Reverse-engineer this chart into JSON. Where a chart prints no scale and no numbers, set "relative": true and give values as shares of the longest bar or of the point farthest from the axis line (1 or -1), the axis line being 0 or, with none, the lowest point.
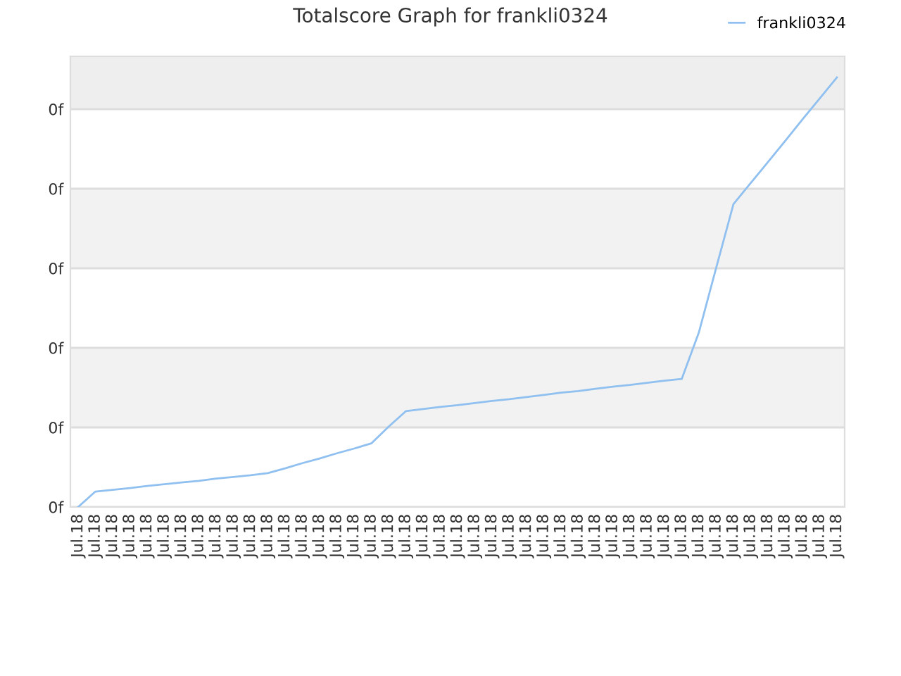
{
  "chart_data": {
    "type": "line",
    "title": "Totalscore Graph for frankli0324",
    "relative": true,
    "categories": [
      "Jul.18",
      "Jul.18",
      "Jul.18",
      "Jul.18",
      "Jul.18",
      "Jul.18",
      "Jul.18",
      "Jul.18",
      "Jul.18",
      "Jul.18",
      "Jul.18",
      "Jul.18",
      "Jul.18",
      "Jul.18",
      "Jul.18",
      "Jul.18",
      "Jul.18",
      "Jul.18",
      "Jul.18",
      "Jul.18",
      "Jul.18",
      "Jul.18",
      "Jul.18",
      "Jul.18",
      "Jul.18",
      "Jul.18",
      "Jul.18",
      "Jul.18",
      "Jul.18",
      "Jul.18",
      "Jul.18",
      "Jul.18",
      "Jul.18",
      "Jul.18",
      "Jul.18",
      "Jul.18",
      "Jul.18",
      "Jul.18",
      "Jul.18",
      "Jul.18",
      "Jul.18",
      "Jul.18",
      "Jul.18",
      "Jul.18",
      "Jul.18"
    ],
    "series": [
      {
        "name": "frankli0324",
        "color": "#90c0f0",
        "values": [
          0,
          0.036,
          0.04,
          0.044,
          0.049,
          0.053,
          0.057,
          0.061,
          0.066,
          0.07,
          0.074,
          0.079,
          0.09,
          0.102,
          0.113,
          0.125,
          0.136,
          0.148,
          0.187,
          0.223,
          0.228,
          0.233,
          0.237,
          0.242,
          0.247,
          0.251,
          0.256,
          0.261,
          0.266,
          0.27,
          0.275,
          0.28,
          0.284,
          0.289,
          0.294,
          0.298,
          0.407,
          0.557,
          0.705,
          0.754,
          0.803,
          0.852,
          0.902,
          0.951,
          1.0
        ]
      }
    ],
    "annotations": [
      "0f",
      "0f",
      "0f",
      "0f",
      "0f",
      "0f"
    ],
    "grid": "y",
    "legend": "top right",
    "marker": "none",
    "line_style": "solid"
  }
}
